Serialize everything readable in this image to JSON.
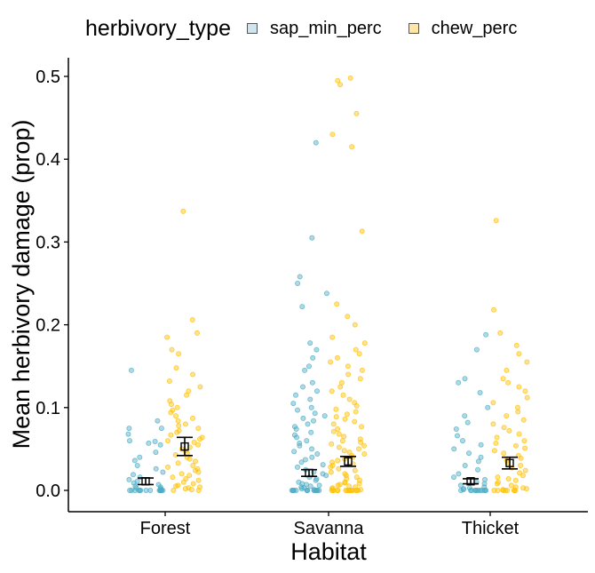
{
  "legend": {
    "title": "herbivory_type",
    "items": [
      {
        "label": "sap_min_perc",
        "color": "#4BACC6",
        "key_fill": "#cfe6ee"
      },
      {
        "label": "chew_perc",
        "color": "#FFC000",
        "key_fill": "#ffe6a6"
      }
    ]
  },
  "chart_data": {
    "type": "scatter",
    "subtype": "jittered strip plot with mean ± SE error bars",
    "title": "",
    "xlabel": "Habitat",
    "ylabel": "Mean herbivory damage (prop)",
    "categories": [
      "Forest",
      "Savanna",
      "Thicket"
    ],
    "ylim": [
      -0.025,
      0.52
    ],
    "yticks": [
      0.0,
      0.1,
      0.2,
      0.3,
      0.4,
      0.5
    ],
    "ytick_labels": [
      "0.0",
      "0.1",
      "0.2",
      "0.3",
      "0.4",
      "0.5"
    ],
    "grid": false,
    "legend_position": "top",
    "series": [
      {
        "name": "sap_min_perc",
        "color": "#4BACC6",
        "groups": [
          {
            "category": "Forest",
            "mean": 0.011,
            "se_low": 0.007,
            "se_high": 0.015,
            "points": [
              0.145,
              0.084,
              0.075,
              0.075,
              0.068,
              0.06,
              0.059,
              0.057,
              0.055,
              0.046,
              0.04,
              0.036,
              0.03,
              0.026,
              0.022,
              0.019,
              0.016,
              0.013,
              0.011,
              0.009,
              0.007,
              0.005,
              0.004,
              0.003,
              0.002,
              0.001,
              0.0,
              0.0,
              0.0,
              0.0,
              0.0,
              0.0,
              0.0,
              0.0,
              0.0,
              0.0,
              0.0,
              0.0,
              0.0,
              0.0
            ]
          },
          {
            "category": "Savanna",
            "mean": 0.021,
            "se_low": 0.017,
            "se_high": 0.025,
            "points": [
              0.42,
              0.305,
              0.258,
              0.25,
              0.238,
              0.222,
              0.178,
              0.17,
              0.16,
              0.15,
              0.145,
              0.13,
              0.125,
              0.12,
              0.115,
              0.11,
              0.105,
              0.1,
              0.097,
              0.093,
              0.09,
              0.087,
              0.084,
              0.08,
              0.077,
              0.074,
              0.07,
              0.067,
              0.064,
              0.06,
              0.057,
              0.054,
              0.05,
              0.047,
              0.044,
              0.04,
              0.037,
              0.034,
              0.031,
              0.028,
              0.025,
              0.022,
              0.02,
              0.018,
              0.016,
              0.014,
              0.012,
              0.01,
              0.008,
              0.007,
              0.006,
              0.005,
              0.004,
              0.003,
              0.002,
              0.001,
              0.0,
              0.0,
              0.0,
              0.0,
              0.0,
              0.0,
              0.0,
              0.0,
              0.0,
              0.0,
              0.0,
              0.0,
              0.0,
              0.0
            ]
          },
          {
            "category": "Thicket",
            "mean": 0.011,
            "se_low": 0.008,
            "se_high": 0.014,
            "points": [
              0.188,
              0.17,
              0.135,
              0.13,
              0.118,
              0.1,
              0.09,
              0.082,
              0.074,
              0.066,
              0.06,
              0.055,
              0.05,
              0.045,
              0.04,
              0.035,
              0.03,
              0.025,
              0.02,
              0.016,
              0.013,
              0.01,
              0.008,
              0.006,
              0.004,
              0.003,
              0.002,
              0.001,
              0.0,
              0.0,
              0.0,
              0.0,
              0.0,
              0.0,
              0.0,
              0.0,
              0.0,
              0.0,
              0.0,
              0.0
            ]
          }
        ]
      },
      {
        "name": "chew_perc",
        "color": "#FFC000",
        "groups": [
          {
            "category": "Forest",
            "mean": 0.053,
            "se_low": 0.042,
            "se_high": 0.064,
            "points": [
              0.337,
              0.206,
              0.19,
              0.185,
              0.17,
              0.165,
              0.148,
              0.14,
              0.132,
              0.125,
              0.12,
              0.115,
              0.108,
              0.104,
              0.1,
              0.097,
              0.094,
              0.09,
              0.087,
              0.084,
              0.08,
              0.078,
              0.075,
              0.072,
              0.07,
              0.067,
              0.064,
              0.062,
              0.06,
              0.058,
              0.055,
              0.052,
              0.05,
              0.048,
              0.045,
              0.043,
              0.04,
              0.038,
              0.035,
              0.033,
              0.03,
              0.028,
              0.026,
              0.024,
              0.022,
              0.02,
              0.018,
              0.016,
              0.014,
              0.012,
              0.01,
              0.008,
              0.006,
              0.005,
              0.004,
              0.003,
              0.002,
              0.001,
              0.0,
              0.0
            ]
          },
          {
            "category": "Savanna",
            "mean": 0.035,
            "se_low": 0.029,
            "se_high": 0.041,
            "points": [
              0.498,
              0.495,
              0.49,
              0.455,
              0.43,
              0.415,
              0.313,
              0.225,
              0.21,
              0.2,
              0.185,
              0.178,
              0.17,
              0.165,
              0.16,
              0.155,
              0.15,
              0.145,
              0.14,
              0.135,
              0.13,
              0.125,
              0.12,
              0.115,
              0.11,
              0.106,
              0.102,
              0.098,
              0.095,
              0.092,
              0.089,
              0.086,
              0.083,
              0.08,
              0.077,
              0.074,
              0.071,
              0.068,
              0.065,
              0.062,
              0.06,
              0.058,
              0.056,
              0.054,
              0.052,
              0.05,
              0.048,
              0.046,
              0.044,
              0.042,
              0.04,
              0.038,
              0.036,
              0.034,
              0.032,
              0.03,
              0.028,
              0.026,
              0.024,
              0.022,
              0.02,
              0.018,
              0.016,
              0.014,
              0.012,
              0.01,
              0.009,
              0.008,
              0.007,
              0.006,
              0.005,
              0.004,
              0.003,
              0.002,
              0.001,
              0.0,
              0.0,
              0.0,
              0.0,
              0.0,
              0.0,
              0.0,
              0.0,
              0.0,
              0.0,
              0.0,
              0.0,
              0.0,
              0.0,
              0.0
            ]
          },
          {
            "category": "Thicket",
            "mean": 0.033,
            "se_low": 0.026,
            "se_high": 0.04,
            "points": [
              0.326,
              0.218,
              0.19,
              0.175,
              0.165,
              0.155,
              0.145,
              0.135,
              0.13,
              0.125,
              0.12,
              0.112,
              0.106,
              0.1,
              0.095,
              0.09,
              0.085,
              0.08,
              0.076,
              0.072,
              0.068,
              0.064,
              0.06,
              0.057,
              0.054,
              0.051,
              0.048,
              0.045,
              0.042,
              0.039,
              0.036,
              0.033,
              0.03,
              0.027,
              0.024,
              0.021,
              0.018,
              0.016,
              0.014,
              0.012,
              0.01,
              0.008,
              0.006,
              0.004,
              0.003,
              0.002,
              0.001,
              0.0,
              0.0,
              0.0,
              0.0,
              0.0,
              0.0,
              0.0,
              0.0
            ]
          }
        ]
      }
    ]
  }
}
